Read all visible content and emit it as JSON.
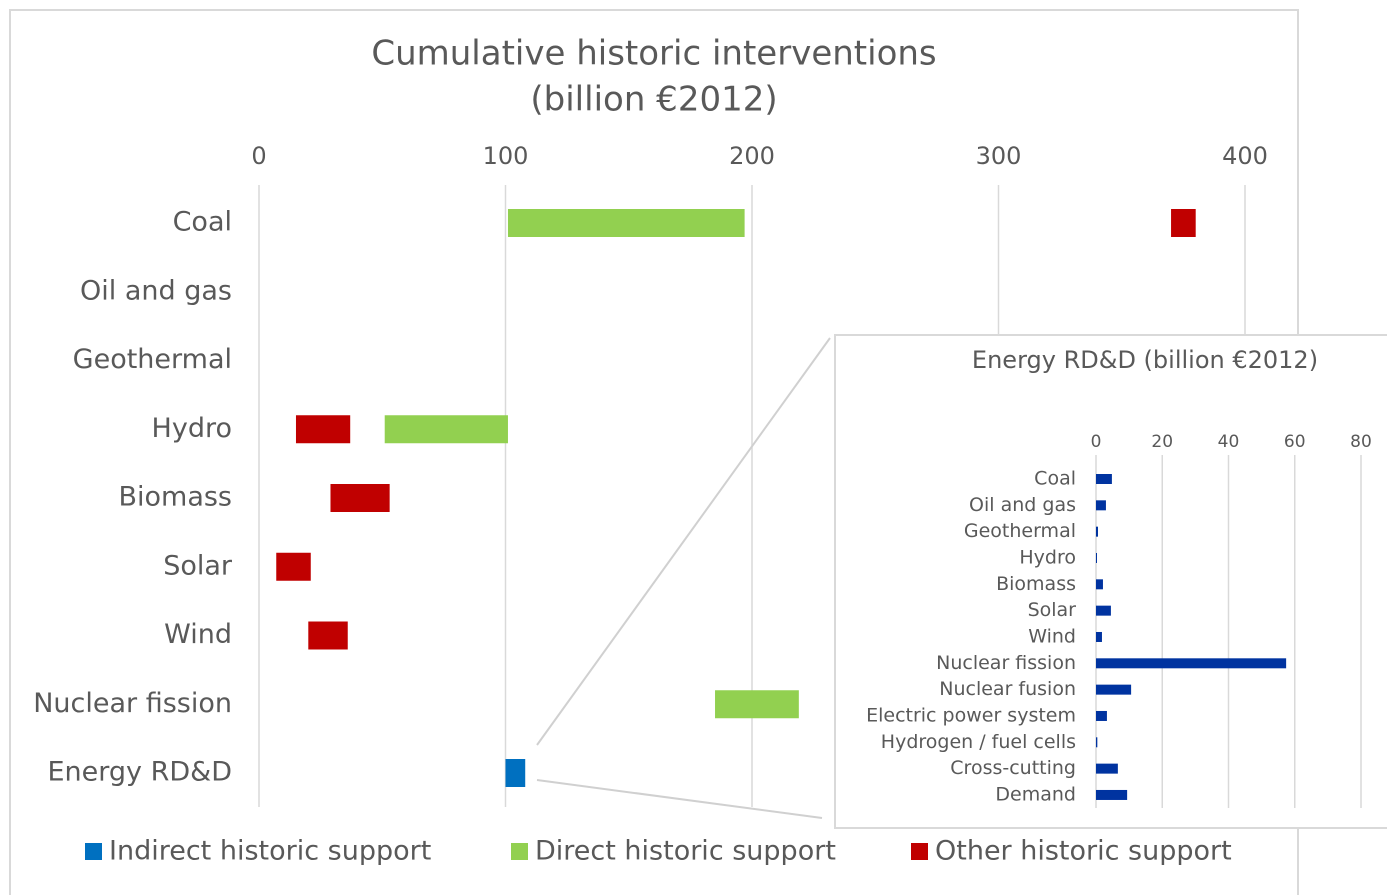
{
  "chart_data": [
    {
      "type": "floating-bar",
      "orientation": "horizontal",
      "title": "Cumulative historic interventions",
      "subtitle": "(billion €2012)",
      "categories": [
        "Coal",
        "Oil and gas",
        "Geothermal",
        "Hydro",
        "Biomass",
        "Solar",
        "Wind",
        "Nuclear fission",
        "Energy RD&D"
      ],
      "series": [
        {
          "name": "Indirect historic support",
          "color": "#0070c0",
          "values": [
            null,
            null,
            null,
            null,
            null,
            null,
            null,
            null,
            [
              100,
              108
            ]
          ]
        },
        {
          "name": "Direct historic support",
          "color": "#92d050",
          "values": [
            [
              101,
              197
            ],
            null,
            null,
            [
              51,
              101
            ],
            null,
            null,
            null,
            [
              185,
              219
            ],
            null
          ]
        },
        {
          "name": "Other historic support",
          "color": "#c00000",
          "values": [
            [
              370,
              380
            ],
            null,
            null,
            [
              15,
              37
            ],
            [
              29,
              53
            ],
            [
              7,
              21
            ],
            [
              20,
              36
            ],
            null,
            null
          ]
        }
      ],
      "xlim": [
        0,
        400
      ],
      "xticks": [
        0,
        100,
        200,
        300,
        400
      ],
      "grid": true,
      "legend": "bottom"
    },
    {
      "type": "bar",
      "orientation": "horizontal",
      "title": "Energy RD&D (billion €2012)",
      "categories": [
        "Coal",
        "Oil and gas",
        "Geothermal",
        "Hydro",
        "Biomass",
        "Solar",
        "Wind",
        "Nuclear fission",
        "Nuclear fusion",
        "Electric power system",
        "Hydrogen / fuel cells",
        "Cross-cutting",
        "Demand"
      ],
      "values": [
        4.8,
        3.0,
        0.6,
        0.3,
        2.1,
        4.5,
        1.8,
        57.4,
        10.6,
        3.3,
        0.4,
        6.6,
        9.4
      ],
      "color": "#0033a0",
      "xlim": [
        0,
        80
      ],
      "xticks": [
        0,
        20,
        40,
        60,
        80
      ],
      "grid": true
    }
  ]
}
